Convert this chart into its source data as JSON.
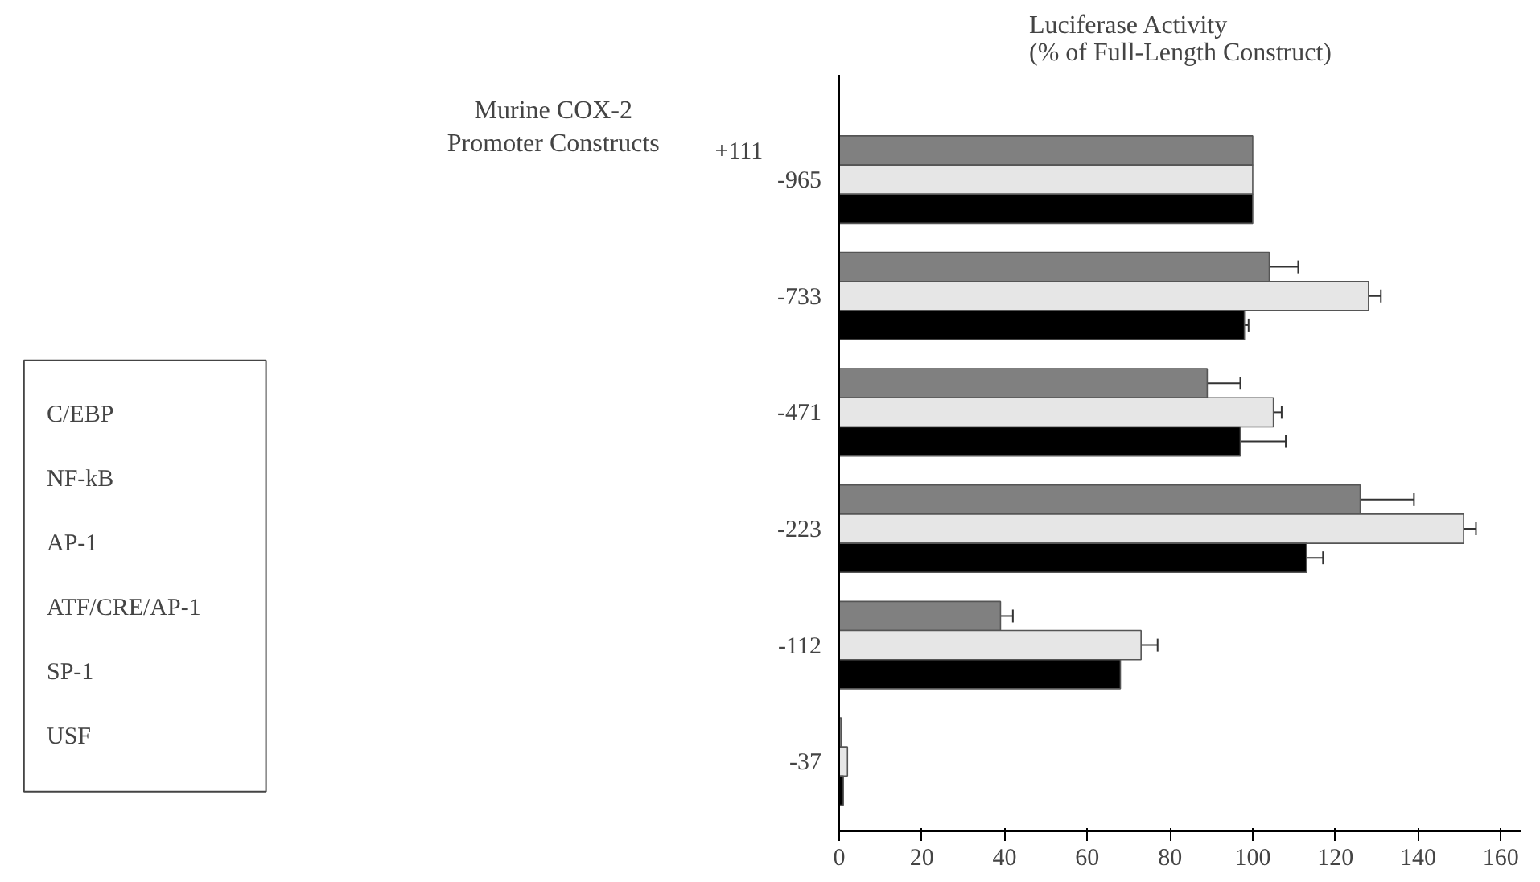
{
  "chart_data": {
    "type": "bar",
    "orientation": "horizontal",
    "title": "Luciferase Activity\n(% of Full-Length Construct)",
    "categories": [
      "-965",
      "-733",
      "-471",
      "-223",
      "-112",
      "-37"
    ],
    "series": [
      {
        "color": "#808080",
        "values": [
          100,
          104,
          89,
          126,
          39,
          0.5
        ],
        "errors": [
          null,
          7,
          8,
          13,
          3,
          null
        ]
      },
      {
        "color": "#e6e6e6",
        "values": [
          100,
          128,
          105,
          151,
          73,
          2
        ],
        "errors": [
          null,
          3,
          2,
          3,
          4,
          null
        ]
      },
      {
        "color": "#000000",
        "values": [
          100,
          98,
          97,
          113,
          68,
          1
        ],
        "errors": [
          null,
          1,
          11,
          4,
          null,
          null
        ]
      }
    ],
    "xlim": [
      0,
      165
    ],
    "xticks": [
      0,
      20,
      40,
      60,
      80,
      100,
      120,
      140,
      160
    ],
    "grid": false,
    "annotations": [
      "+111",
      "Murine COX-2\nPromoter Constructs",
      "C/EBP",
      "NF-kB",
      "AP-1",
      "ATF/CRE/AP-1",
      "SP-1",
      "USF"
    ]
  }
}
